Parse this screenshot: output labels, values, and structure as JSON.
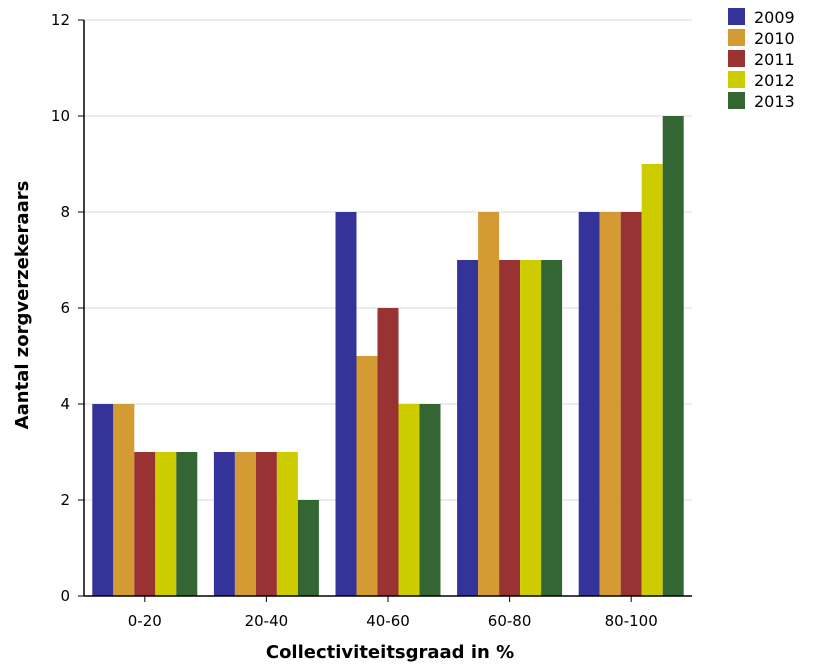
{
  "chart_data": {
    "type": "bar",
    "title": "",
    "xlabel": "Collectiviteitsgraad in %",
    "ylabel": "Aantal zorgverzekeraars",
    "categories": [
      "0-20",
      "20-40",
      "40-60",
      "60-80",
      "80-100"
    ],
    "ylim": [
      0,
      12
    ],
    "yticks": [
      0,
      2,
      4,
      6,
      8,
      10,
      12
    ],
    "grid": "horizontal",
    "legend_position": "top-right",
    "series": [
      {
        "name": "2009",
        "color": "#333399",
        "values": [
          4,
          3,
          8,
          7,
          8
        ]
      },
      {
        "name": "2010",
        "color": "#D49A33",
        "values": [
          4,
          3,
          5,
          8,
          8
        ]
      },
      {
        "name": "2011",
        "color": "#993333",
        "values": [
          3,
          3,
          6,
          7,
          8
        ]
      },
      {
        "name": "2012",
        "color": "#CCCC00",
        "values": [
          3,
          3,
          4,
          7,
          9
        ]
      },
      {
        "name": "2013",
        "color": "#336633",
        "values": [
          3,
          2,
          4,
          7,
          10
        ]
      }
    ]
  }
}
